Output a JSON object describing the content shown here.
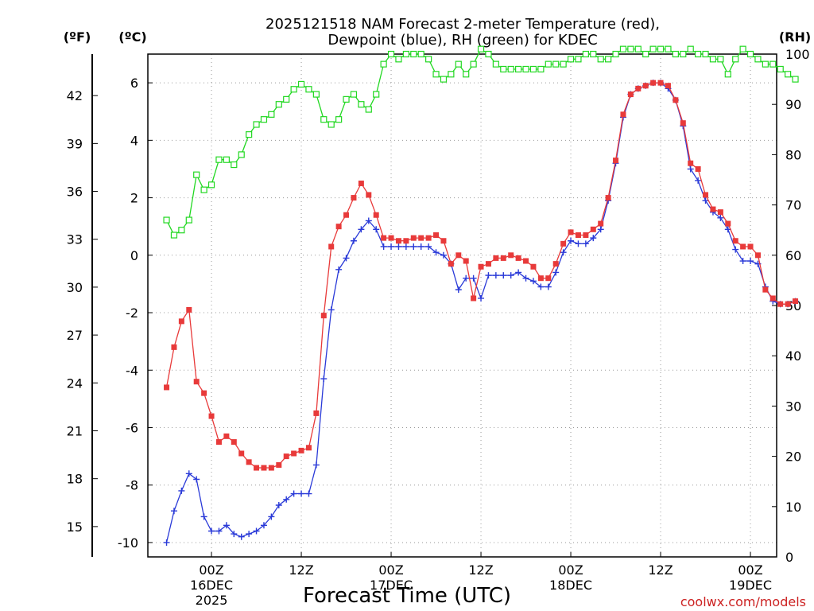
{
  "chart_data": {
    "type": "line",
    "title": "2025121518 NAM Forecast 2-meter Temperature (red),",
    "subtitle": "Dewpoint (blue), RH (green) for KDEC",
    "xlabel": "Forecast Time (UTC)",
    "ylabel_left_f": "(ºF)",
    "ylabel_left_c": "(ºC)",
    "ylabel_right": "(RH)",
    "credit": "coolwx.com/models",
    "x_range_hours": [
      0,
      84
    ],
    "xlim": [
      -2.5,
      81.5
    ],
    "ylim_c": [
      -10.5,
      7
    ],
    "ylim_rh": [
      0,
      100
    ],
    "x_ticks": [
      {
        "hour": 6,
        "label": "00Z",
        "sub1": "16DEC",
        "sub2": "2025"
      },
      {
        "hour": 18,
        "label": "12Z",
        "sub1": "",
        "sub2": ""
      },
      {
        "hour": 30,
        "label": "00Z",
        "sub1": "17DEC",
        "sub2": ""
      },
      {
        "hour": 42,
        "label": "12Z",
        "sub1": "",
        "sub2": ""
      },
      {
        "hour": 54,
        "label": "00Z",
        "sub1": "18DEC",
        "sub2": ""
      },
      {
        "hour": 66,
        "label": "12Z",
        "sub1": "",
        "sub2": ""
      },
      {
        "hour": 78,
        "label": "00Z",
        "sub1": "19DEC",
        "sub2": ""
      }
    ],
    "y_ticks_c": [
      -10,
      -8,
      -6,
      -4,
      -2,
      0,
      2,
      4,
      6
    ],
    "y_ticks_f": [
      15,
      18,
      21,
      24,
      27,
      30,
      33,
      36,
      39,
      42
    ],
    "y_ticks_rh": [
      0,
      10,
      20,
      30,
      40,
      50,
      60,
      70,
      80,
      90,
      100
    ],
    "series": [
      {
        "name": "Temperature",
        "color": "#e83a3a",
        "marker": "filled-square",
        "axis": "c",
        "values": [
          -4.6,
          -3.2,
          -2.3,
          -1.9,
          -4.4,
          -4.8,
          -5.6,
          -6.5,
          -6.3,
          -6.5,
          -6.9,
          -7.2,
          -7.4,
          -7.4,
          -7.4,
          -7.3,
          -7.0,
          -6.9,
          -6.8,
          -6.7,
          -5.5,
          -2.1,
          0.3,
          1.0,
          1.4,
          2.0,
          2.5,
          2.1,
          1.4,
          0.6,
          0.6,
          0.5,
          0.5,
          0.6,
          0.6,
          0.6,
          0.7,
          0.5,
          -0.3,
          0.0,
          -0.2,
          -1.5,
          -0.4,
          -0.3,
          -0.1,
          -0.1,
          0.0,
          -0.1,
          -0.2,
          -0.4,
          -0.8,
          -0.8,
          -0.3,
          0.4,
          0.8,
          0.7,
          0.7,
          0.9,
          1.1,
          2.0,
          3.3,
          4.9,
          5.6,
          5.8,
          5.9,
          6.0,
          6.0,
          5.9,
          5.4,
          4.6,
          3.2,
          3.0,
          2.1,
          1.6,
          1.5,
          1.1,
          0.5,
          0.3,
          0.3,
          0.0,
          -1.2,
          -1.5,
          -1.7,
          -1.7,
          -1.6
        ]
      },
      {
        "name": "Dewpoint",
        "color": "#2a3ad8",
        "marker": "plus",
        "axis": "c",
        "values": [
          -10.0,
          -8.9,
          -8.2,
          -7.6,
          -7.8,
          -9.1,
          -9.6,
          -9.6,
          -9.4,
          -9.7,
          -9.8,
          -9.7,
          -9.6,
          -9.4,
          -9.1,
          -8.7,
          -8.5,
          -8.3,
          -8.3,
          -8.3,
          -7.3,
          -4.3,
          -1.9,
          -0.5,
          -0.1,
          0.5,
          0.9,
          1.2,
          0.9,
          0.3,
          0.3,
          0.3,
          0.3,
          0.3,
          0.3,
          0.3,
          0.1,
          0.0,
          -0.3,
          -1.2,
          -0.8,
          -0.8,
          -1.5,
          -0.7,
          -0.7,
          -0.7,
          -0.7,
          -0.6,
          -0.8,
          -0.9,
          -1.1,
          -1.1,
          -0.6,
          0.1,
          0.5,
          0.4,
          0.4,
          0.6,
          0.9,
          1.9,
          3.2,
          4.8,
          5.6,
          5.8,
          5.9,
          6.0,
          6.0,
          5.8,
          5.4,
          4.5,
          3.0,
          2.6,
          1.9,
          1.5,
          1.3,
          0.9,
          0.2,
          -0.2,
          -0.2,
          -0.3,
          -1.1,
          -1.6,
          -1.7,
          -1.7,
          -1.6
        ]
      },
      {
        "name": "RH",
        "color": "#22d822",
        "marker": "open-square",
        "axis": "rh",
        "values": [
          67,
          64,
          65,
          67,
          76,
          73,
          74,
          79,
          79,
          78,
          80,
          84,
          86,
          87,
          88,
          90,
          91,
          93,
          94,
          93,
          92,
          87,
          86,
          87,
          91,
          92,
          90,
          89,
          92,
          98,
          100,
          99,
          100,
          100,
          100,
          99,
          96,
          95,
          96,
          98,
          96,
          98,
          101,
          100,
          98,
          97,
          97,
          97,
          97,
          97,
          97,
          98,
          98,
          98,
          99,
          99,
          100,
          100,
          99,
          99,
          100,
          101,
          101,
          101,
          100,
          101,
          101,
          101,
          100,
          100,
          101,
          100,
          100,
          99,
          99,
          96,
          99,
          101,
          100,
          99,
          98,
          98,
          97,
          96,
          95
        ]
      }
    ]
  }
}
